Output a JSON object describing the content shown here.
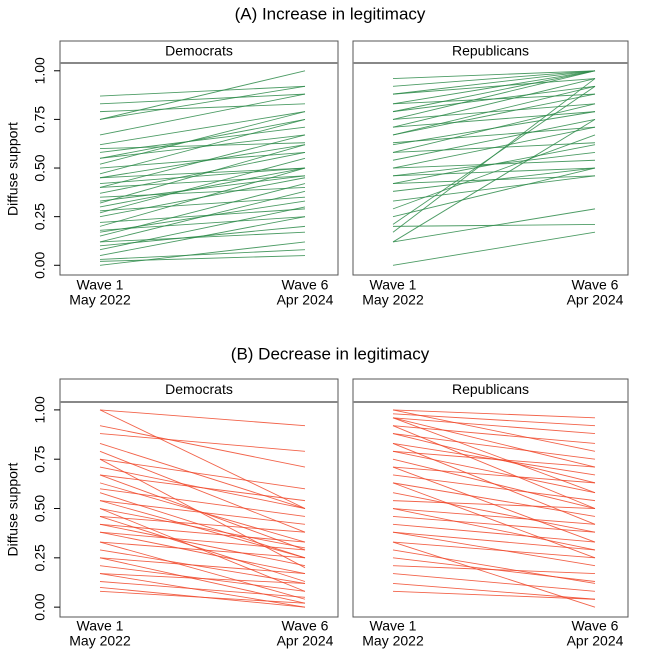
{
  "chart_data": [
    {
      "type": "line",
      "title": "(A) Increase in legitimacy",
      "panel": "Democrats",
      "ylabel": "Diffuse support",
      "categories": [
        "Wave 1",
        "Wave 6"
      ],
      "category_sublabels": [
        "May 2022",
        "Apr 2024"
      ],
      "ylim": [
        -0.05,
        1.04
      ],
      "yticks": [
        {
          "value": 0,
          "label": "0.00"
        },
        {
          "value": 0.25,
          "label": "0.25"
        },
        {
          "value": 0.5,
          "label": "0.50"
        },
        {
          "value": 0.75,
          "label": "0.75"
        },
        {
          "value": 1,
          "label": "1.00"
        }
      ],
      "color": "#2e8b4a",
      "series": [
        {
          "values": [
            0,
            0.12
          ]
        },
        {
          "values": [
            0.02,
            0.05
          ]
        },
        {
          "values": [
            0.05,
            0.25
          ]
        },
        {
          "values": [
            0.08,
            0.3
          ]
        },
        {
          "values": [
            0.1,
            0.2
          ]
        },
        {
          "values": [
            0.12,
            0.38
          ]
        },
        {
          "values": [
            0.15,
            0.42
          ]
        },
        {
          "values": [
            0.17,
            0.33
          ]
        },
        {
          "values": [
            0.2,
            0.5
          ]
        },
        {
          "values": [
            0.22,
            0.29
          ]
        },
        {
          "values": [
            0.25,
            0.45
          ]
        },
        {
          "values": [
            0.27,
            0.55
          ]
        },
        {
          "values": [
            0.3,
            0.5
          ]
        },
        {
          "values": [
            0.32,
            0.62
          ]
        },
        {
          "values": [
            0.35,
            0.4
          ]
        },
        {
          "values": [
            0.37,
            0.58
          ]
        },
        {
          "values": [
            0.4,
            0.67
          ]
        },
        {
          "values": [
            0.42,
            0.5
          ]
        },
        {
          "values": [
            0.45,
            0.62
          ]
        },
        {
          "values": [
            0.47,
            0.75
          ]
        },
        {
          "values": [
            0.5,
            0.58
          ]
        },
        {
          "values": [
            0.52,
            0.79
          ]
        },
        {
          "values": [
            0.55,
            0.67
          ]
        },
        {
          "values": [
            0.58,
            0.71
          ]
        },
        {
          "values": [
            0.6,
            0.63
          ]
        },
        {
          "values": [
            0.62,
            0.79
          ]
        },
        {
          "values": [
            0.67,
            0.88
          ]
        },
        {
          "values": [
            0.75,
            0.92
          ]
        },
        {
          "values": [
            0.79,
            0.83
          ]
        },
        {
          "values": [
            0.83,
            0.88
          ]
        },
        {
          "values": [
            0.87,
            0.92
          ]
        },
        {
          "values": [
            0.75,
            1.0
          ]
        },
        {
          "values": [
            0.4,
            0.46
          ]
        },
        {
          "values": [
            0.28,
            0.35
          ]
        },
        {
          "values": [
            0.18,
            0.25
          ]
        },
        {
          "values": [
            0.33,
            0.46
          ]
        },
        {
          "values": [
            0.45,
            0.5
          ]
        },
        {
          "values": [
            0.12,
            0.17
          ]
        },
        {
          "values": [
            0.03,
            0.08
          ]
        },
        {
          "values": [
            0.55,
            0.75
          ]
        }
      ]
    },
    {
      "type": "line",
      "panel": "Republicans",
      "categories": [
        "Wave 1",
        "Wave 6"
      ],
      "category_sublabels": [
        "May 2022",
        "Apr 2024"
      ],
      "ylim": [
        -0.05,
        1.04
      ],
      "color": "#2e8b4a",
      "series": [
        {
          "values": [
            0,
            0.17
          ]
        },
        {
          "values": [
            0.12,
            0.29
          ]
        },
        {
          "values": [
            0.12,
            0.75
          ]
        },
        {
          "values": [
            0.17,
            0.96
          ]
        },
        {
          "values": [
            0.2,
            0.21
          ]
        },
        {
          "values": [
            0.25,
            0.5
          ]
        },
        {
          "values": [
            0.33,
            0.46
          ]
        },
        {
          "values": [
            0.38,
            0.5
          ]
        },
        {
          "values": [
            0.42,
            0.62
          ]
        },
        {
          "values": [
            0.46,
            0.5
          ]
        },
        {
          "values": [
            0.46,
            0.58
          ]
        },
        {
          "values": [
            0.5,
            0.71
          ]
        },
        {
          "values": [
            0.54,
            0.75
          ]
        },
        {
          "values": [
            0.58,
            0.63
          ]
        },
        {
          "values": [
            0.58,
            0.83
          ]
        },
        {
          "values": [
            0.62,
            0.79
          ]
        },
        {
          "values": [
            0.67,
            0.88
          ]
        },
        {
          "values": [
            0.67,
            0.92
          ]
        },
        {
          "values": [
            0.71,
            0.79
          ]
        },
        {
          "values": [
            0.71,
            0.96
          ]
        },
        {
          "values": [
            0.75,
            0.83
          ]
        },
        {
          "values": [
            0.75,
            1.0
          ]
        },
        {
          "values": [
            0.79,
            0.92
          ]
        },
        {
          "values": [
            0.79,
            1.0
          ]
        },
        {
          "values": [
            0.83,
            0.88
          ]
        },
        {
          "values": [
            0.83,
            1.0
          ]
        },
        {
          "values": [
            0.88,
            0.96
          ]
        },
        {
          "values": [
            0.88,
            1.0
          ]
        },
        {
          "values": [
            0.92,
            1.0
          ]
        },
        {
          "values": [
            0.96,
            1.0
          ]
        },
        {
          "values": [
            0.63,
            0.71
          ]
        },
        {
          "values": [
            0.5,
            0.54
          ]
        },
        {
          "values": [
            0.29,
            0.67
          ]
        },
        {
          "values": [
            0.21,
            0.92
          ]
        },
        {
          "values": [
            0.42,
            0.46
          ]
        }
      ]
    },
    {
      "type": "line",
      "title": "(B) Decrease in legitimacy",
      "panel": "Democrats",
      "ylabel": "Diffuse support",
      "categories": [
        "Wave 1",
        "Wave 6"
      ],
      "category_sublabels": [
        "May 2022",
        "Apr 2024"
      ],
      "ylim": [
        -0.05,
        1.04
      ],
      "yticks": [
        {
          "value": 0,
          "label": "0.00"
        },
        {
          "value": 0.25,
          "label": "0.25"
        },
        {
          "value": 0.5,
          "label": "0.50"
        },
        {
          "value": 0.75,
          "label": "0.75"
        },
        {
          "value": 1,
          "label": "1.00"
        }
      ],
      "color": "#f0482a",
      "series": [
        {
          "values": [
            1,
            0.5
          ]
        },
        {
          "values": [
            1,
            0.92
          ]
        },
        {
          "values": [
            0.92,
            0.71
          ]
        },
        {
          "values": [
            0.88,
            0.79
          ]
        },
        {
          "values": [
            0.83,
            0.5
          ]
        },
        {
          "values": [
            0.79,
            0.38
          ]
        },
        {
          "values": [
            0.75,
            0.6
          ]
        },
        {
          "values": [
            0.75,
            0.2
          ]
        },
        {
          "values": [
            0.71,
            0.5
          ]
        },
        {
          "values": [
            0.67,
            0.54
          ]
        },
        {
          "values": [
            0.63,
            0.33
          ]
        },
        {
          "values": [
            0.6,
            0.46
          ]
        },
        {
          "values": [
            0.58,
            0.25
          ]
        },
        {
          "values": [
            0.54,
            0.42
          ]
        },
        {
          "values": [
            0.5,
            0.3
          ]
        },
        {
          "values": [
            0.5,
            0.08
          ]
        },
        {
          "values": [
            0.46,
            0.38
          ]
        },
        {
          "values": [
            0.42,
            0.21
          ]
        },
        {
          "values": [
            0.42,
            0.33
          ]
        },
        {
          "values": [
            0.38,
            0.17
          ]
        },
        {
          "values": [
            0.38,
            0.29
          ]
        },
        {
          "values": [
            0.33,
            0.25
          ]
        },
        {
          "values": [
            0.33,
            0.04
          ]
        },
        {
          "values": [
            0.29,
            0.12
          ]
        },
        {
          "values": [
            0.25,
            0.17
          ]
        },
        {
          "values": [
            0.25,
            0.02
          ]
        },
        {
          "values": [
            0.21,
            0.08
          ]
        },
        {
          "values": [
            0.17,
            0.12
          ]
        },
        {
          "values": [
            0.17,
            0
          ]
        },
        {
          "values": [
            0.13,
            0.05
          ]
        },
        {
          "values": [
            0.1,
            0
          ]
        },
        {
          "values": [
            0.08,
            0.02
          ]
        },
        {
          "values": [
            0.46,
            0.13
          ]
        },
        {
          "values": [
            0.54,
            0.25
          ]
        },
        {
          "values": [
            0.67,
            0.29
          ]
        }
      ]
    },
    {
      "type": "line",
      "panel": "Republicans",
      "categories": [
        "Wave 1",
        "Wave 6"
      ],
      "category_sublabels": [
        "May 2022",
        "Apr 2024"
      ],
      "ylim": [
        -0.05,
        1.04
      ],
      "color": "#f0482a",
      "series": [
        {
          "values": [
            1,
            0.96
          ]
        },
        {
          "values": [
            1,
            0.79
          ]
        },
        {
          "values": [
            0.98,
            0.92
          ]
        },
        {
          "values": [
            0.96,
            0.71
          ]
        },
        {
          "values": [
            0.96,
            0.58
          ]
        },
        {
          "values": [
            0.92,
            0.83
          ]
        },
        {
          "values": [
            0.92,
            0.5
          ]
        },
        {
          "values": [
            0.88,
            0.75
          ]
        },
        {
          "values": [
            0.88,
            0.63
          ]
        },
        {
          "values": [
            0.83,
            0.67
          ]
        },
        {
          "values": [
            0.83,
            0.42
          ]
        },
        {
          "values": [
            0.79,
            0.58
          ]
        },
        {
          "values": [
            0.79,
            0.71
          ]
        },
        {
          "values": [
            0.75,
            0.5
          ]
        },
        {
          "values": [
            0.71,
            0.63
          ]
        },
        {
          "values": [
            0.71,
            0.33
          ]
        },
        {
          "values": [
            0.67,
            0.54
          ]
        },
        {
          "values": [
            0.63,
            0.46
          ]
        },
        {
          "values": [
            0.58,
            0.38
          ]
        },
        {
          "values": [
            0.54,
            0.5
          ]
        },
        {
          "values": [
            0.5,
            0.42
          ]
        },
        {
          "values": [
            0.5,
            0.29
          ]
        },
        {
          "values": [
            0.46,
            0.38
          ]
        },
        {
          "values": [
            0.42,
            0.33
          ]
        },
        {
          "values": [
            0.38,
            0.29
          ]
        },
        {
          "values": [
            0.38,
            0.21
          ]
        },
        {
          "values": [
            0.33,
            0.25
          ]
        },
        {
          "values": [
            0.29,
            0.12
          ]
        },
        {
          "values": [
            0.25,
            0.13
          ]
        },
        {
          "values": [
            0.21,
            0.17
          ]
        },
        {
          "values": [
            0.17,
            0.08
          ]
        },
        {
          "values": [
            0.12,
            0.04
          ]
        },
        {
          "values": [
            0.08,
            0.04
          ]
        },
        {
          "values": [
            0.33,
            0
          ]
        },
        {
          "values": [
            0.63,
            0.25
          ]
        },
        {
          "values": [
            0.96,
            0.88
          ]
        }
      ]
    }
  ]
}
